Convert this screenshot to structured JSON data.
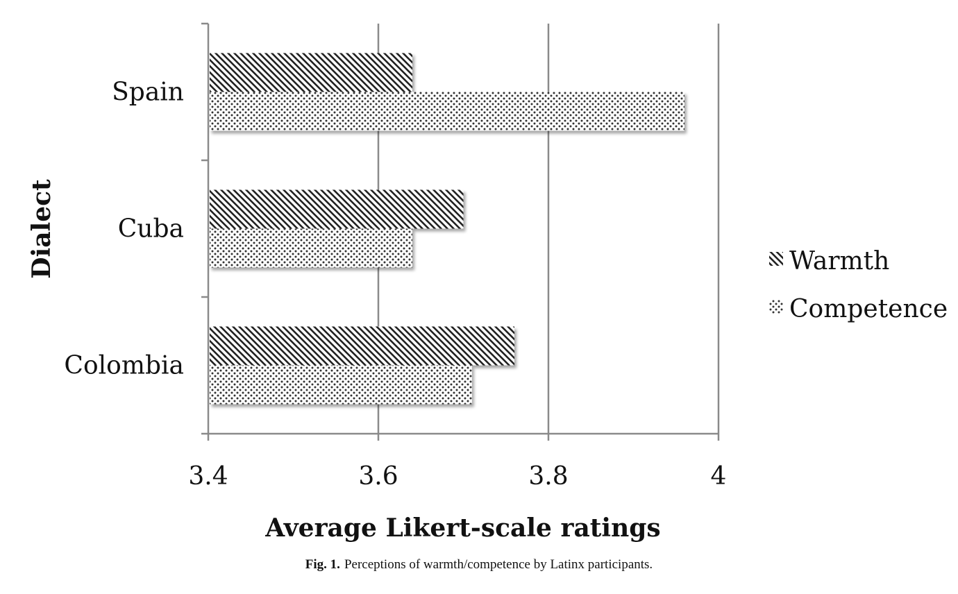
{
  "chart_data": {
    "type": "bar",
    "orientation": "horizontal",
    "categories": [
      "Spain",
      "Cuba",
      "Colombia"
    ],
    "series": [
      {
        "name": "Warmth",
        "values": [
          3.64,
          3.7,
          3.76
        ],
        "pattern": "diagonal-hatch"
      },
      {
        "name": "Competence",
        "values": [
          3.96,
          3.64,
          3.71
        ],
        "pattern": "dots"
      }
    ],
    "xlim": [
      3.4,
      4.0
    ],
    "xticks": [
      "3.4",
      "3.6",
      "3.8",
      "4"
    ],
    "xlabel": "Average Likert-scale ratings",
    "ylabel": "Dialect",
    "grid": true,
    "legend": "right"
  },
  "caption": {
    "label": "Fig. 1.",
    "text": "Perceptions of warmth/competence by Latinx participants."
  }
}
